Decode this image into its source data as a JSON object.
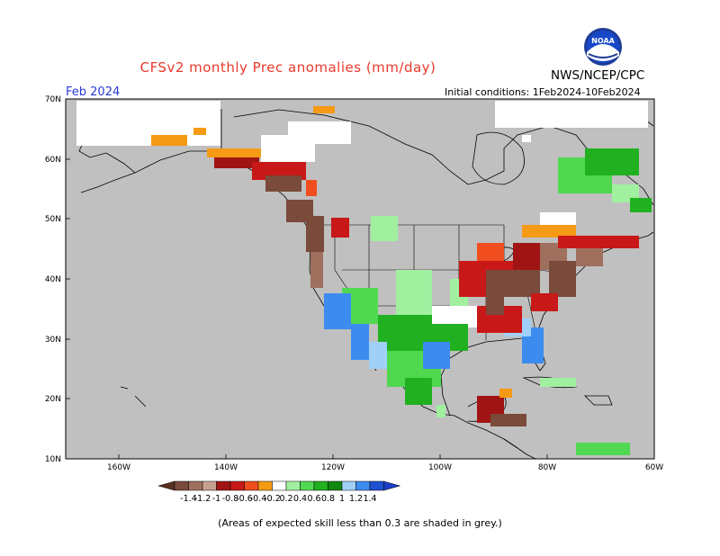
{
  "title": "CFSv2 monthly Prec anomalies (mm/day)",
  "agency": "NWS/NCEP/CPC",
  "month": "Feb 2024",
  "initial_conditions": "Initial conditions: 1Feb2024-10Feb2024",
  "skill_note": "(Areas of expected skill less than 0.3 are shaded in grey.)",
  "logo_text": "NOAA",
  "map": {
    "lon_range": [
      -170,
      -60
    ],
    "lat_range": [
      10,
      70
    ],
    "lat_ticks": [
      "70N",
      "60N",
      "50N",
      "40N",
      "30N",
      "20N",
      "10N"
    ],
    "lon_ticks": [
      "160W",
      "140W",
      "120W",
      "100W",
      "80W",
      "60W"
    ],
    "background_color": "#c0c0c0"
  },
  "colorbar": {
    "labels": [
      "-1.4",
      "-1.2",
      "-1",
      "-0.8",
      "-0.6",
      "-0.4",
      "-0.2",
      "0.2",
      "0.4",
      "0.6",
      "0.8",
      "1",
      "1.2",
      "1.4"
    ],
    "colors": [
      "#7a4a3a",
      "#a0705e",
      "#c8a090",
      "#a01414",
      "#c81818",
      "#f04e1e",
      "#f59a14",
      "#ffffff",
      "#a0f0a0",
      "#50d850",
      "#20b020",
      "#108810",
      "#a0d0f8",
      "#3c8cf0",
      "#1e50d0"
    ],
    "left_arrow": "#5a3020",
    "right_arrow": "#1c3cc8"
  }
}
